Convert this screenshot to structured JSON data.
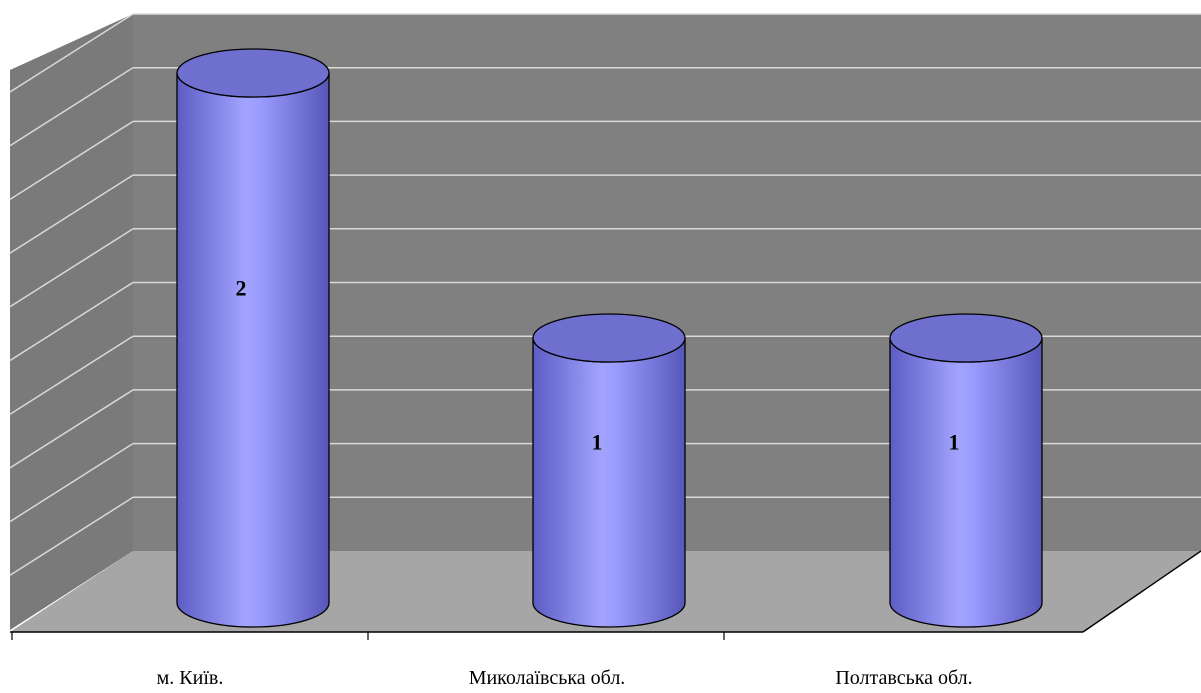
{
  "chart_data": {
    "type": "bar",
    "style": "3d-cylinder",
    "categories": [
      "м. Київ.",
      "Миколаївська обл.",
      "Полтавська обл."
    ],
    "values": [
      2,
      1,
      1
    ],
    "data_labels": [
      "2",
      "1",
      "1"
    ],
    "title": "",
    "xlabel": "",
    "ylabel": "",
    "ylim": [
      0,
      2.4
    ],
    "grid": true,
    "legend": "none",
    "colors": {
      "bar": "#9999ff",
      "bar_dark": "#5a5ac0",
      "bar_top": "#6f6fcf",
      "wall": "#808080",
      "floor": "#a6a6a6",
      "gridline": "#d9d9d9"
    }
  }
}
